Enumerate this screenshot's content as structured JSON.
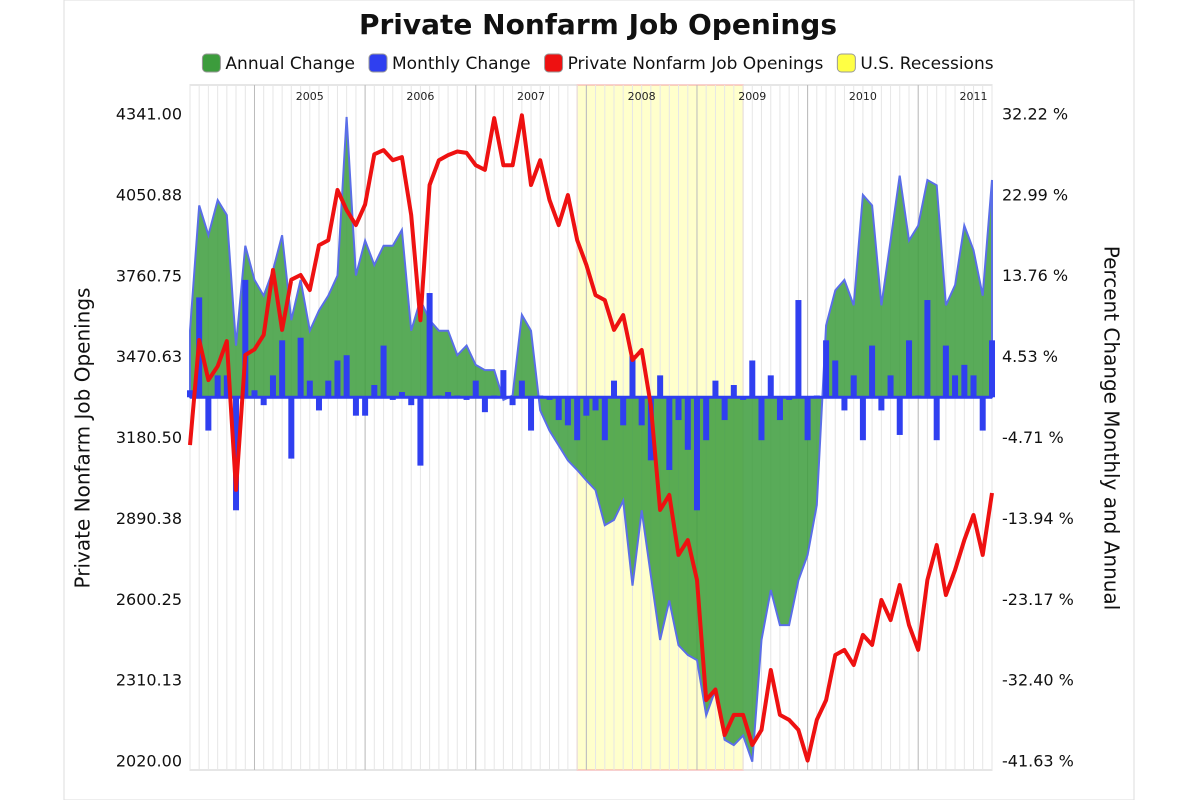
{
  "chart_data": {
    "type": "combo",
    "title": "Private Nonfarm Job Openings",
    "y_label": "Private Nonfarm Job Openings",
    "y2_label": "Percent Change Monthly and Annual",
    "x": [
      2004.417,
      2004.5,
      2004.583,
      2004.667,
      2004.75,
      2004.833,
      2004.917,
      2005,
      2005.083,
      2005.167,
      2005.25,
      2005.333,
      2005.417,
      2005.5,
      2005.583,
      2005.667,
      2005.75,
      2005.833,
      2005.917,
      2006,
      2006.083,
      2006.167,
      2006.25,
      2006.333,
      2006.417,
      2006.5,
      2006.583,
      2006.667,
      2006.75,
      2006.833,
      2006.917,
      2007,
      2007.083,
      2007.167,
      2007.25,
      2007.333,
      2007.417,
      2007.5,
      2007.583,
      2007.667,
      2007.75,
      2007.833,
      2007.917,
      2008,
      2008.083,
      2008.167,
      2008.25,
      2008.333,
      2008.417,
      2008.5,
      2008.583,
      2008.667,
      2008.75,
      2008.833,
      2008.917,
      2009,
      2009.083,
      2009.167,
      2009.25,
      2009.333,
      2009.417,
      2009.5,
      2009.583,
      2009.667,
      2009.75,
      2009.833,
      2009.917,
      2010,
      2010.083,
      2010.167,
      2010.25,
      2010.333,
      2010.417,
      2010.5,
      2010.583,
      2010.667,
      2010.75,
      2010.833,
      2010.917,
      2011,
      2011.083,
      2011.167,
      2011.25,
      2011.333,
      2011.417,
      2011.5,
      2011.583,
      2011.667
    ],
    "xlim": [
      2004.417,
      2011.667
    ],
    "xticks": [
      2005,
      2006,
      2007,
      2008,
      2009,
      2010,
      2011
    ],
    "ylim": [
      2020,
      4341
    ],
    "yticks": [
      {
        "value": 2020,
        "label": "2020.00"
      },
      2310.13,
      2600.25,
      2890.38,
      {
        "value": 3180.5,
        "label": "3180.50"
      },
      3470.63,
      3760.75,
      4050.88,
      {
        "value": 4341,
        "label": "4341.00"
      }
    ],
    "y2lim": [
      -41.63,
      32.22
    ],
    "y2ticks": [
      {
        "value": -41.63,
        "label": "-41.63 %"
      },
      {
        "value": -32.4,
        "label": "-32.40 %"
      },
      {
        "value": -23.17,
        "label": "-23.17 %"
      },
      {
        "value": -13.94,
        "label": "-13.94 %"
      },
      {
        "value": -4.71,
        "label": "-4.71 %"
      },
      {
        "value": 4.53,
        "label": "4.53 %"
      },
      {
        "value": 13.76,
        "label": "13.76 %"
      },
      {
        "value": 22.99,
        "label": "22.99 %"
      },
      {
        "value": 32.22,
        "label": "32.22 %"
      }
    ],
    "series": [
      {
        "name": "Annual Change",
        "type": "area",
        "axis": "y2",
        "color": "#3c9c3c",
        "values": [
          7.6,
          21.9,
          18.5,
          22.5,
          20.8,
          5.9,
          17.3,
          13.4,
          11.6,
          14.5,
          18.5,
          8.8,
          13.4,
          7.6,
          9.9,
          11.6,
          13.9,
          32.0,
          13.9,
          17.9,
          15.1,
          17.3,
          17.3,
          19.1,
          7.6,
          11.1,
          8.8,
          7.6,
          7.6,
          4.8,
          5.9,
          3.7,
          3.1,
          3.1,
          -0.3,
          0.2,
          9.4,
          7.6,
          -1.5,
          -3.8,
          -5.5,
          -7.2,
          -8.3,
          -9.5,
          -10.6,
          -14.6,
          -14.0,
          -11.8,
          -21.5,
          -12.9,
          -20.3,
          -27.7,
          -23.2,
          -28.3,
          -29.4,
          -30.0,
          -36.3,
          -33.4,
          -39.1,
          -39.7,
          -38.6,
          -41.6,
          -27.7,
          -22.0,
          -26.0,
          -26.0,
          -20.9,
          -18.0,
          -12.3,
          8.2,
          12.2,
          13.4,
          10.5,
          23.1,
          21.9,
          10.5,
          17.9,
          25.3,
          17.9,
          19.6,
          24.8,
          24.2,
          10.5,
          12.8,
          19.6,
          16.8,
          11.6,
          24.8
        ]
      },
      {
        "name": "Monthly Change",
        "type": "bar",
        "axis": "y2",
        "color": "#2f3ff0",
        "values": [
          0.8,
          11.4,
          -3.8,
          2.5,
          2.5,
          -12.9,
          13.4,
          0.8,
          -0.9,
          2.5,
          6.5,
          -7.0,
          6.8,
          1.9,
          -1.5,
          1.9,
          4.2,
          4.8,
          -2.1,
          -2.1,
          1.4,
          5.9,
          -0.3,
          0.6,
          -0.9,
          -7.8,
          11.9,
          0.2,
          0.6,
          0.2,
          -0.3,
          1.9,
          -1.7,
          0.2,
          3.1,
          -0.9,
          1.9,
          -3.8,
          0.2,
          -0.3,
          -2.6,
          -3.2,
          -4.9,
          -2.1,
          -1.5,
          -4.9,
          1.9,
          -3.2,
          4.8,
          -3.2,
          -7.2,
          2.5,
          -8.3,
          -2.6,
          -6.0,
          -12.9,
          -4.9,
          1.9,
          -2.6,
          1.4,
          -0.3,
          4.2,
          -4.9,
          2.5,
          -2.6,
          -0.3,
          11.1,
          -4.9,
          0.2,
          6.5,
          4.2,
          -1.5,
          2.5,
          -4.9,
          5.9,
          -1.5,
          2.5,
          -4.3,
          6.5,
          0.2,
          11.1,
          -4.9,
          5.9,
          2.5,
          3.7,
          2.5,
          -3.8,
          6.5
        ]
      },
      {
        "name": "Private Nonfarm Job Openings",
        "type": "line",
        "axis": "y",
        "color": "#ee1111",
        "values": [
          3157,
          3534,
          3390,
          3440,
          3530,
          2996,
          3480,
          3500,
          3552,
          3785,
          3570,
          3750,
          3767,
          3713,
          3874,
          3892,
          4072,
          4000,
          3946,
          4020,
          4200,
          4215,
          4179,
          4190,
          3982,
          3605,
          4090,
          4179,
          4197,
          4210,
          4205,
          4161,
          4144,
          4330,
          4161,
          4161,
          4340,
          4090,
          4179,
          4036,
          3946,
          4054,
          3892,
          3803,
          3695,
          3677,
          3570,
          3623,
          3462,
          3498,
          3300,
          2924,
          2978,
          2763,
          2816,
          2673,
          2242,
          2280,
          2117,
          2189,
          2189,
          2081,
          2135,
          2350,
          2189,
          2171,
          2135,
          2025,
          2171,
          2242,
          2404,
          2422,
          2368,
          2476,
          2440,
          2601,
          2529,
          2655,
          2511,
          2422,
          2673,
          2798,
          2619,
          2709,
          2816,
          2906,
          2763,
          2985
        ]
      }
    ],
    "recessions": {
      "name": "U.S. Recessions",
      "color": "#ffffcc",
      "spans": [
        [
          2007.917,
          2009.417
        ]
      ]
    }
  }
}
